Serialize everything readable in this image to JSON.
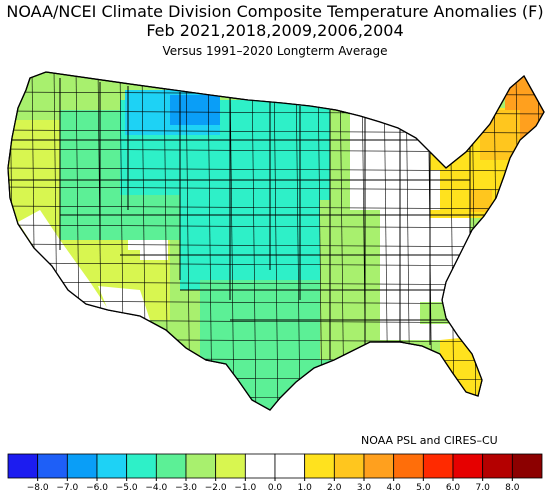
{
  "title": "NOAA/NCEI Climate Division Composite Temperature Anomalies (F)",
  "subtitle": "Feb   2021,2018,2009,2006,2004",
  "caption": "Versus 1991–2020 Longterm Average",
  "credit": "NOAA PSL and CIRES–CU",
  "legend": {
    "ticks": [
      "−8.0",
      "−7.0",
      "−6.0",
      "−5.0",
      "−4.0",
      "−3.0",
      "−2.0",
      "−1.0",
      "0.0",
      "1.0",
      "2.0",
      "3.0",
      "4.0",
      "5.0",
      "6.0",
      "7.0",
      "8.0"
    ],
    "colors": [
      "#1c1cf0",
      "#1e5ff7",
      "#0a9ef7",
      "#1ed2f5",
      "#2ef0c8",
      "#5cf096",
      "#a8f06e",
      "#d8f650",
      "#ffffff",
      "#ffffff",
      "#ffe21e",
      "#ffc61e",
      "#ffa01e",
      "#ff6e0a",
      "#ff2a00",
      "#e60000",
      "#b40000",
      "#8c0000"
    ]
  },
  "palette": {
    "neutral": "#ffffff",
    "m1": "#d8f650",
    "m2": "#a8f06e",
    "m3": "#5cf096",
    "m4": "#2ef0c8",
    "m5": "#1ed2f5",
    "m6": "#0a9ef7",
    "p1": "#ffe21e",
    "p2": "#ffc61e",
    "p3": "#ffa01e"
  }
}
